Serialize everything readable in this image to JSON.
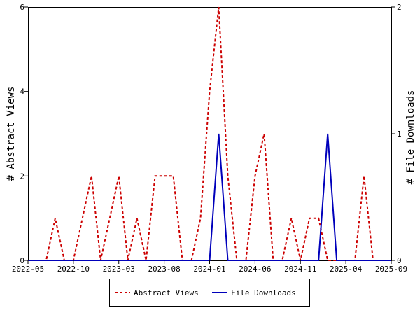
{
  "chart_data": {
    "type": "line",
    "x_tick_labels": [
      "2022-05",
      "2022-10",
      "2023-03",
      "2023-08",
      "2024-01",
      "2024-06",
      "2024-11",
      "2025-04",
      "2025-09"
    ],
    "x_range": [
      "2022-05",
      "2025-09"
    ],
    "ylabel_left": "# Abstract Views",
    "ylabel_right": "# File Downloads",
    "ylim_left": [
      0,
      6
    ],
    "ylim_right": [
      0,
      2
    ],
    "yticks_left": [
      "0",
      "2",
      "4",
      "6"
    ],
    "yticks_right": [
      "0",
      "1",
      "2"
    ],
    "legend_position": "bottom-center",
    "grid": false,
    "series": [
      {
        "name": "Abstract Views",
        "axis": "left",
        "color": "#cc0000",
        "style": "dashed",
        "x": [
          "2022-05",
          "2022-06",
          "2022-07",
          "2022-08",
          "2022-09",
          "2022-10",
          "2022-11",
          "2022-12",
          "2023-01",
          "2023-02",
          "2023-03",
          "2023-04",
          "2023-05",
          "2023-06",
          "2023-07",
          "2023-08",
          "2023-09",
          "2023-10",
          "2023-11",
          "2023-12",
          "2024-01",
          "2024-02",
          "2024-03",
          "2024-04",
          "2024-05",
          "2024-06",
          "2024-07",
          "2024-08",
          "2024-09",
          "2024-10",
          "2024-11",
          "2024-12",
          "2025-01",
          "2025-02",
          "2025-03",
          "2025-04",
          "2025-05",
          "2025-06",
          "2025-07",
          "2025-08",
          "2025-09"
        ],
        "values": [
          0,
          0,
          0,
          1,
          0,
          0,
          1,
          2,
          0,
          1,
          2,
          0,
          1,
          0,
          2,
          2,
          2,
          0,
          0,
          1,
          4,
          6,
          2,
          0,
          0,
          2,
          3,
          0,
          0,
          1,
          0,
          1,
          1,
          0,
          0,
          0,
          0,
          2,
          0,
          0,
          0
        ]
      },
      {
        "name": "File Downloads",
        "axis": "right",
        "color": "#0000bb",
        "style": "solid",
        "x": [
          "2022-05",
          "2022-06",
          "2022-07",
          "2022-08",
          "2022-09",
          "2022-10",
          "2022-11",
          "2022-12",
          "2023-01",
          "2023-02",
          "2023-03",
          "2023-04",
          "2023-05",
          "2023-06",
          "2023-07",
          "2023-08",
          "2023-09",
          "2023-10",
          "2023-11",
          "2023-12",
          "2024-01",
          "2024-02",
          "2024-03",
          "2024-04",
          "2024-05",
          "2024-06",
          "2024-07",
          "2024-08",
          "2024-09",
          "2024-10",
          "2024-11",
          "2024-12",
          "2025-01",
          "2025-02",
          "2025-03",
          "2025-04",
          "2025-05",
          "2025-06",
          "2025-07",
          "2025-08",
          "2025-09"
        ],
        "values": [
          0,
          0,
          0,
          0,
          0,
          0,
          0,
          0,
          0,
          0,
          0,
          0,
          0,
          0,
          0,
          0,
          0,
          0,
          0,
          0,
          0,
          1,
          0,
          0,
          0,
          0,
          0,
          0,
          0,
          0,
          0,
          0,
          0,
          1,
          0,
          0,
          0,
          0,
          0,
          0,
          0
        ]
      }
    ]
  }
}
